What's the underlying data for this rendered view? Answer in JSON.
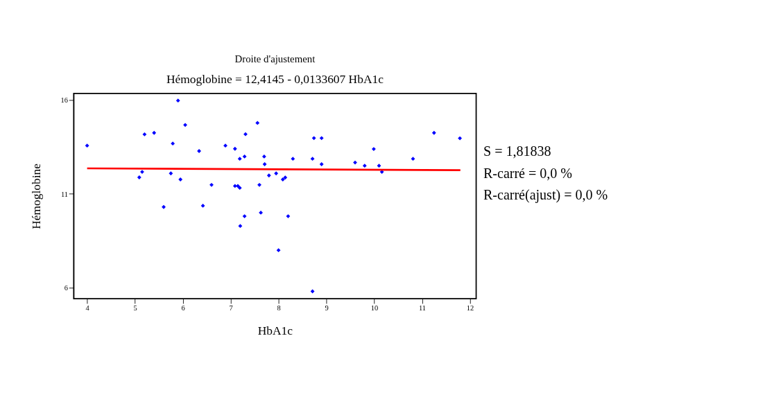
{
  "chart_data": {
    "type": "scatter",
    "title": "Droite d'ajustement",
    "subtitle": "Hémoglobine = 12,4145 - 0,0133607 HbA1c",
    "xlabel": "HbA1c",
    "ylabel": "Hémoglobine",
    "annotations": [
      "S = 1,81838",
      "R-carré = 0,0 %",
      "R-carré(ajust) = 0,0 %"
    ],
    "xlim": [
      3.72,
      12.13
    ],
    "ylim": [
      5.42,
      16.35
    ],
    "xticks": [
      4,
      5,
      6,
      7,
      8,
      9,
      10,
      11,
      12
    ],
    "yticks": [
      6,
      11,
      16
    ],
    "grid": false,
    "series": [
      {
        "marker": "diamond",
        "color": "#0000ff",
        "x": [
          4.0,
          5.9,
          6.05,
          5.2,
          5.4,
          5.79,
          6.34,
          6.89,
          7.09,
          7.19,
          7.29,
          7.31,
          7.56,
          7.7,
          7.71,
          7.8,
          7.95,
          5.15,
          5.09,
          5.75,
          5.95,
          6.6,
          7.09,
          7.15,
          7.19,
          7.6,
          5.6,
          6.42,
          8.09,
          8.14,
          8.3,
          8.74,
          8.9,
          8.71,
          8.9,
          9.6,
          9.8,
          9.99,
          10.1,
          10.16,
          10.81,
          11.25,
          11.79,
          7.29,
          7.63,
          8.2,
          7.2,
          8.0,
          8.71
        ],
        "values": [
          13.57,
          15.97,
          14.67,
          14.17,
          14.25,
          13.68,
          13.28,
          13.57,
          13.4,
          12.87,
          12.99,
          14.18,
          14.78,
          12.99,
          12.58,
          11.98,
          12.09,
          12.17,
          11.88,
          12.09,
          11.77,
          11.48,
          11.42,
          11.42,
          11.32,
          11.48,
          10.3,
          10.37,
          11.77,
          11.87,
          12.87,
          13.97,
          13.97,
          12.87,
          12.58,
          12.67,
          12.5,
          13.39,
          12.5,
          12.17,
          12.87,
          14.25,
          13.96,
          9.81,
          10.0,
          9.81,
          9.29,
          8.0,
          5.81
        ]
      },
      {
        "type": "line",
        "color": "#ff0000",
        "x": [
          4.0,
          11.8
        ],
        "values": [
          12.36,
          12.26
        ]
      }
    ]
  }
}
